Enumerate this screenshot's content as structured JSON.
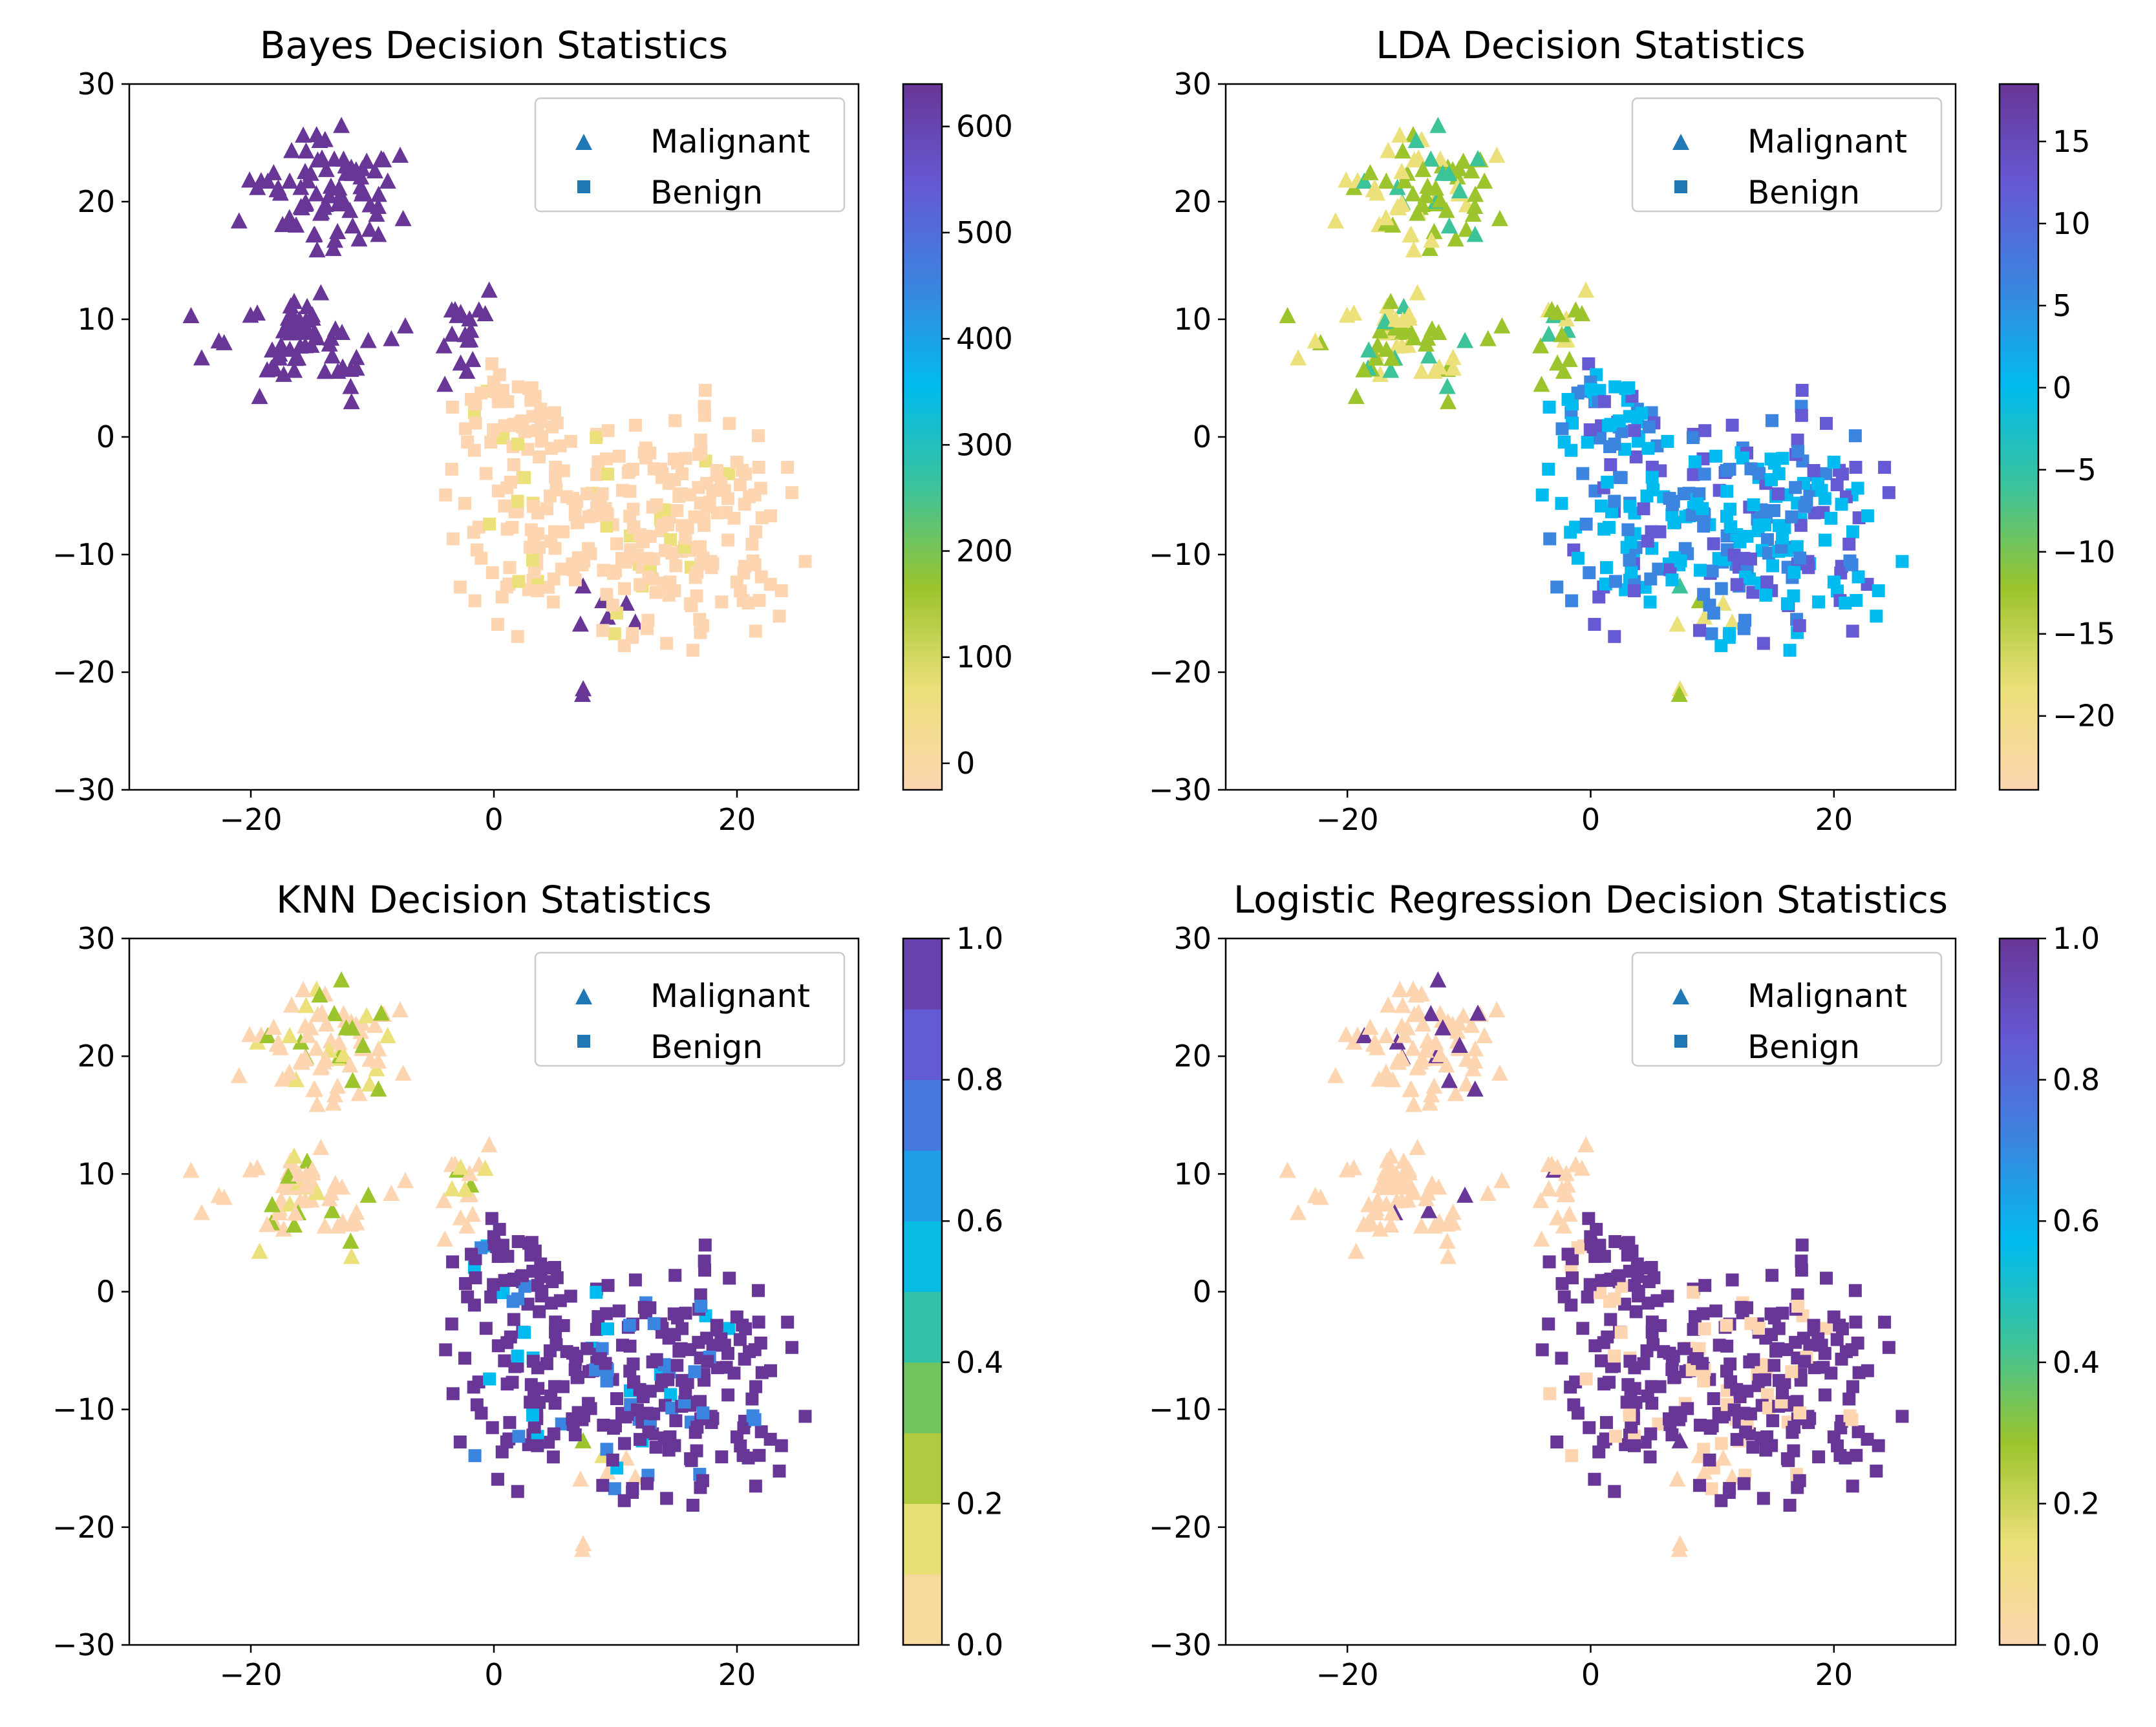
{
  "colors": {
    "scale": [
      "#fdd5b0",
      "#ece07a",
      "#9cc42c",
      "#3cc39a",
      "#00bbf0",
      "#3b84e0",
      "#6559d4",
      "#683696"
    ],
    "legend_marker": "#1f77b4"
  },
  "legend": {
    "malignant": "Malignant",
    "benign": "Benign"
  },
  "chart_data": [
    {
      "type": "scatter",
      "title": "Bayes Decision Statistics",
      "xlim": [
        -30,
        30
      ],
      "ylim": [
        -30,
        30
      ],
      "xticks": [
        -20,
        0,
        20
      ],
      "yticks": [
        -30,
        -20,
        -10,
        0,
        10,
        20,
        30
      ],
      "tick_labels_x": [
        "−20",
        "0",
        "20"
      ],
      "tick_labels_y": [
        "−30",
        "−20",
        "−10",
        "0",
        "10",
        "20",
        "30"
      ],
      "colorbar": {
        "min": -25,
        "max": 640,
        "discrete": false,
        "ticks": [
          0,
          100,
          200,
          300,
          400,
          500,
          600
        ],
        "tick_labels": [
          "0",
          "100",
          "200",
          "300",
          "400",
          "500",
          "600"
        ]
      },
      "legend_position": "upper right",
      "mode": "bayes"
    },
    {
      "type": "scatter",
      "title": "LDA Decision Statistics",
      "xlim": [
        -30,
        30
      ],
      "ylim": [
        -30,
        30
      ],
      "xticks": [
        -20,
        0,
        20
      ],
      "yticks": [
        -30,
        -20,
        -10,
        0,
        10,
        20,
        30
      ],
      "tick_labels_x": [
        "−20",
        "0",
        "20"
      ],
      "tick_labels_y": [
        "−30",
        "−20",
        "−10",
        "0",
        "10",
        "20",
        "30"
      ],
      "colorbar": {
        "min": -24.5,
        "max": 18.5,
        "discrete": false,
        "ticks": [
          -20,
          -15,
          -10,
          -5,
          0,
          5,
          10,
          15
        ],
        "tick_labels": [
          "−20",
          "−15",
          "−10",
          "−5",
          "0",
          "5",
          "10",
          "15"
        ]
      },
      "legend_position": "upper right",
      "mode": "lda"
    },
    {
      "type": "scatter",
      "title": "KNN Decision Statistics",
      "xlim": [
        -30,
        30
      ],
      "ylim": [
        -30,
        30
      ],
      "xticks": [
        -20,
        0,
        20
      ],
      "yticks": [
        -30,
        -20,
        -10,
        0,
        10,
        20,
        30
      ],
      "tick_labels_x": [
        "−20",
        "0",
        "20"
      ],
      "tick_labels_y": [
        "−30",
        "−20",
        "−10",
        "0",
        "10",
        "20",
        "30"
      ],
      "colorbar": {
        "min": 0,
        "max": 1,
        "discrete": true,
        "ticks": [
          0,
          0.2,
          0.4,
          0.6,
          0.8,
          1.0
        ],
        "tick_labels": [
          "0.0",
          "0.2",
          "0.4",
          "0.6",
          "0.8",
          "1.0"
        ]
      },
      "legend_position": "upper right",
      "mode": "knn"
    },
    {
      "type": "scatter",
      "title": "Logistic Regression Decision Statistics",
      "xlim": [
        -30,
        30
      ],
      "ylim": [
        -30,
        30
      ],
      "xticks": [
        -20,
        0,
        20
      ],
      "yticks": [
        -30,
        -20,
        -10,
        0,
        10,
        20,
        30
      ],
      "tick_labels_x": [
        "−20",
        "0",
        "20"
      ],
      "tick_labels_y": [
        "−30",
        "−20",
        "−10",
        "0",
        "10",
        "20",
        "30"
      ],
      "colorbar": {
        "min": 0,
        "max": 1,
        "discrete": false,
        "ticks": [
          0,
          0.2,
          0.4,
          0.6,
          0.8,
          1.0
        ],
        "tick_labels": [
          "0.0",
          "0.2",
          "0.4",
          "0.6",
          "0.8",
          "1.0"
        ]
      },
      "legend_position": "upper right",
      "mode": "logreg"
    }
  ]
}
